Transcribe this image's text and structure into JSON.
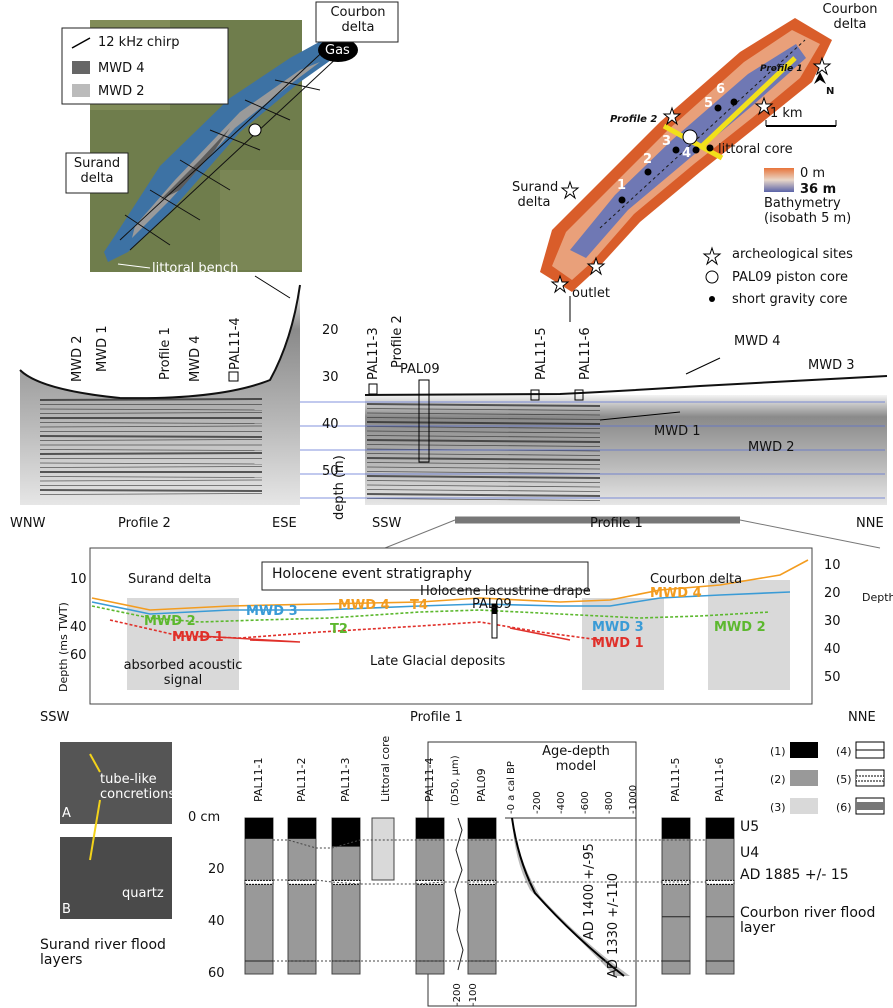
{
  "overview_map": {
    "legend": [
      "12 kHz chirp",
      "MWD 4",
      "MWD 2"
    ],
    "courbon": "Courbon delta",
    "gas": "Gas",
    "surand": "Surand delta",
    "bench": "littoral bench"
  },
  "bathy_map": {
    "courbon": "Courbon delta",
    "profile_1": "Profile 1",
    "profile_2": "Profile 2",
    "scale": "1 km",
    "north": "N",
    "core_numbers": [
      1,
      2,
      3,
      4,
      5,
      6
    ],
    "littoral_core": "littoral core",
    "surand": "Surand delta",
    "outlet": "outlet",
    "bathy_min": "0 m",
    "bathy_max": "36 m",
    "bathy_title": "Bathymetry (isobath 5 m)",
    "legend": [
      "archeological sites",
      "PAL09 piston core",
      "short gravity core"
    ]
  },
  "profile_2": {
    "labels": [
      "MWD 2",
      "MWD 1",
      "Profile 1",
      "MWD 4",
      "PAL11-4"
    ],
    "left": "WNW",
    "title": "Profile 2",
    "right": "ESE"
  },
  "depth_axis": {
    "ticks": [
      20,
      30,
      40,
      50
    ],
    "label": "depth (m)"
  },
  "profile_1": {
    "labels": [
      "PAL11-3",
      "Profile 2",
      "PAL09",
      "PAL11-5",
      "PAL11-6",
      "MWD 4",
      "MWD 3",
      "MWD 1",
      "MWD 2"
    ],
    "left": "SSW",
    "title": "Profile 1",
    "right": "NNE"
  },
  "stratigraphy": {
    "title": "Holocene event stratigraphy",
    "left_label": "Depth (ms TWT)",
    "left_ticks": [
      10,
      40,
      60
    ],
    "right_label": "Depth (m)",
    "right_ticks": [
      10,
      20,
      30,
      40,
      50
    ],
    "labels": [
      "Surand delta",
      "Courbon delta",
      "Holocene lacustrine drape",
      "PAL09",
      "MWD 3",
      "MWD 4",
      "T4",
      "MWD 2",
      "T2",
      "MWD 1",
      "Late Glacial deposits",
      "MWD 3",
      "MWD 1",
      "MWD 4",
      "MWD 2",
      "absorbed acoustic signal"
    ],
    "left": "SSW",
    "profile": "Profile 1",
    "right": "NNE"
  },
  "cores": {
    "photo_labels": [
      "A",
      "B"
    ],
    "photo_notes": [
      "tube-like concretions",
      "quartz"
    ],
    "surand_flood": "Surand river flood layers",
    "names": [
      "PAL11-1",
      "PAL11-2",
      "PAL11-3",
      "Littoral core",
      "PAL11-4",
      "PAL09",
      "PAL11-5",
      "PAL11-6"
    ],
    "depth_ticks": [
      {
        "value": 0,
        "label": "0 cm"
      },
      20,
      40,
      60
    ],
    "d50_label": "(D50, µm)",
    "d50_ticks": [
      {
        "value": 200,
        "label": "-200"
      },
      {
        "value": 100,
        "label": "-100"
      }
    ],
    "age_title": "Age-depth model",
    "age_ticks": [
      {
        "value": 0,
        "label": "-0 a cal BP"
      },
      {
        "value": 200,
        "label": "-200"
      },
      {
        "value": 400,
        "label": "-400"
      },
      {
        "value": 600,
        "label": "-600"
      },
      {
        "value": 800,
        "label": "-800"
      },
      {
        "value": 1000,
        "label": "-1000"
      }
    ],
    "ages": [
      "AD 1400 +/-95",
      "AD 1330 +/-110"
    ],
    "legend": [
      "(1)",
      "(2)",
      "(3)",
      "(4)",
      "(5)",
      "(6)"
    ],
    "units": [
      "U5",
      "U4"
    ],
    "ad1885": "AD 1885 +/- 15",
    "courbon_flood": "Courbon river flood layer"
  }
}
